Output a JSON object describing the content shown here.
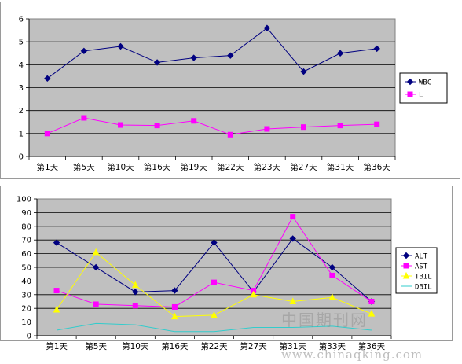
{
  "chart_data": [
    {
      "type": "line",
      "categories": [
        "第1天",
        "第5天",
        "第10天",
        "第16天",
        "第19天",
        "第22天",
        "第23天",
        "第27天",
        "第31天",
        "第36天"
      ],
      "ylim": [
        0,
        6
      ],
      "yticks": [
        0,
        1,
        2,
        3,
        4,
        5,
        6
      ],
      "grid": true,
      "legend": "right",
      "plot_bg": "#c0c0c0",
      "series": [
        {
          "name": "WBC",
          "color": "#000080",
          "marker": "diamond",
          "values": [
            3.4,
            4.6,
            4.8,
            4.1,
            4.3,
            4.4,
            5.6,
            3.7,
            4.5,
            4.7
          ]
        },
        {
          "name": "L",
          "color": "#ff00ff",
          "marker": "square",
          "values": [
            1.0,
            1.68,
            1.37,
            1.35,
            1.55,
            0.95,
            1.2,
            1.28,
            1.35,
            1.4
          ]
        }
      ]
    },
    {
      "type": "line",
      "categories": [
        "第1天",
        "第5天",
        "第10天",
        "第16天",
        "第22天",
        "第27天",
        "第31天",
        "第33天",
        "第36天"
      ],
      "ylim": [
        0,
        100
      ],
      "yticks": [
        0,
        10,
        20,
        30,
        40,
        50,
        60,
        70,
        80,
        90,
        100
      ],
      "grid": true,
      "legend": "right",
      "plot_bg": "#c0c0c0",
      "series": [
        {
          "name": "ALT",
          "color": "#000080",
          "marker": "diamond",
          "values": [
            68,
            50,
            32,
            33,
            68,
            32,
            71,
            50,
            25
          ]
        },
        {
          "name": "AST",
          "color": "#ff00ff",
          "marker": "square",
          "values": [
            33,
            23,
            22,
            21,
            39,
            33,
            87,
            44,
            25
          ]
        },
        {
          "name": "TBIL",
          "color": "#ffff00",
          "marker": "triangle",
          "values": [
            19,
            61,
            37,
            14,
            15,
            30,
            25,
            28,
            16
          ]
        },
        {
          "name": "DBIL",
          "color": "#33cccc",
          "marker": "none",
          "values": [
            4,
            9,
            8,
            3,
            3,
            6,
            6,
            7,
            4
          ]
        }
      ]
    }
  ],
  "watermark": {
    "cn": "中国期刊网",
    "url": "www.chinaqking.com"
  }
}
